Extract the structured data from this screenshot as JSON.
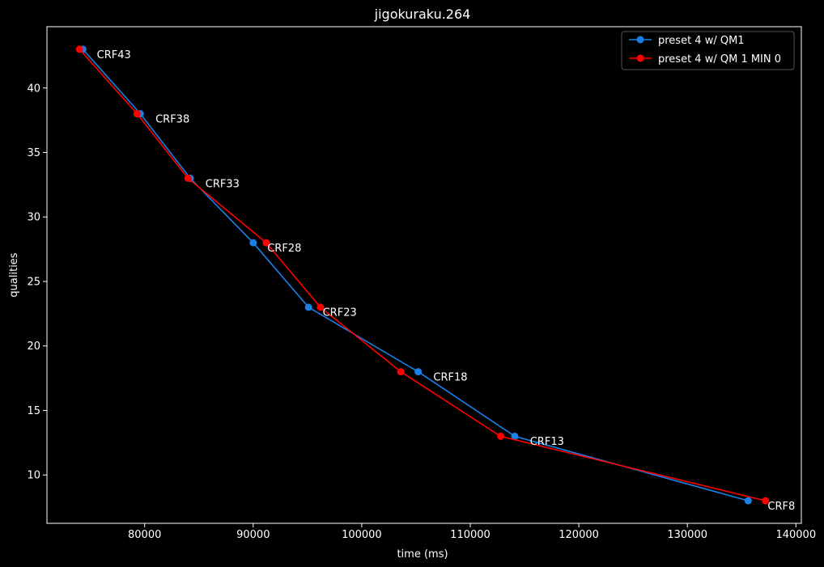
{
  "chart_data": {
    "type": "line",
    "title": "jigokuraku.264",
    "xlabel": "time (ms)",
    "ylabel": "qualities",
    "xlim": [
      71000,
      140500
    ],
    "ylim": [
      6.25,
      44.75
    ],
    "xticks": [
      80000,
      90000,
      100000,
      110000,
      120000,
      130000,
      140000
    ],
    "yticks": [
      10,
      15,
      20,
      25,
      30,
      35,
      40
    ],
    "grid": false,
    "legend_position": "top-right",
    "series": [
      {
        "name": "preset 4 w/ QM1",
        "color": "#1a80e8",
        "points": [
          {
            "x": 74300,
            "y": 43
          },
          {
            "x": 79600,
            "y": 38
          },
          {
            "x": 84200,
            "y": 33
          },
          {
            "x": 90000,
            "y": 28
          },
          {
            "x": 95100,
            "y": 23
          },
          {
            "x": 105200,
            "y": 18
          },
          {
            "x": 114100,
            "y": 13
          },
          {
            "x": 135600,
            "y": 8
          }
        ]
      },
      {
        "name": "preset 4 w/ QM 1 MIN 0",
        "color": "#ff0000",
        "points": [
          {
            "x": 74000,
            "y": 43
          },
          {
            "x": 79300,
            "y": 38
          },
          {
            "x": 84000,
            "y": 33
          },
          {
            "x": 91200,
            "y": 28
          },
          {
            "x": 96200,
            "y": 23
          },
          {
            "x": 103600,
            "y": 18
          },
          {
            "x": 112800,
            "y": 13
          },
          {
            "x": 137200,
            "y": 8
          }
        ]
      }
    ],
    "annotations": [
      {
        "text": "CRF43",
        "x": 75600,
        "y": 42.6
      },
      {
        "text": "CRF38",
        "x": 81000,
        "y": 37.6
      },
      {
        "text": "CRF33",
        "x": 85600,
        "y": 32.6
      },
      {
        "text": "CRF28",
        "x": 91300,
        "y": 27.6
      },
      {
        "text": "CRF23",
        "x": 96400,
        "y": 22.6
      },
      {
        "text": "CRF18",
        "x": 106600,
        "y": 17.6
      },
      {
        "text": "CRF13",
        "x": 115500,
        "y": 12.6
      },
      {
        "text": "CRF8",
        "x": 137400,
        "y": 7.6
      }
    ]
  }
}
